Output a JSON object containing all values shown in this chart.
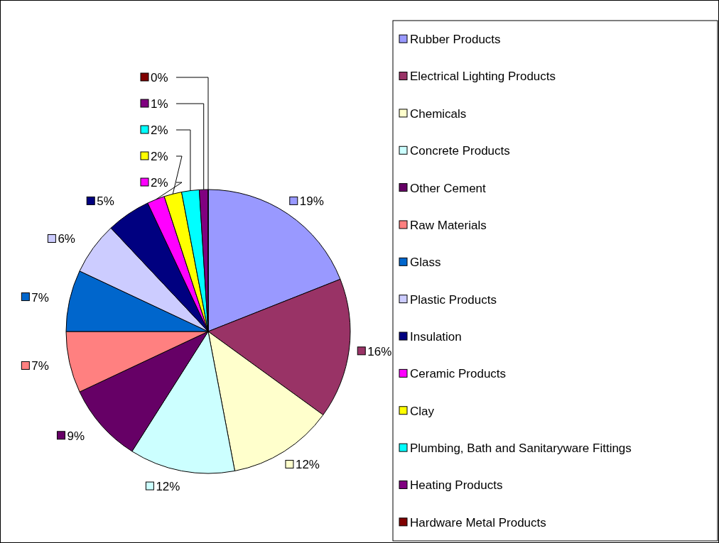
{
  "chart_data": {
    "type": "pie",
    "legend": "right",
    "categories": [
      "Rubber Products",
      "Electrical Lighting Products",
      "Chemicals",
      "Concrete Products",
      "Other Cement",
      "Raw Materials",
      "Glass",
      "Plastic Products",
      "Insulation",
      "Ceramic Products",
      "Clay",
      "Plumbing, Bath and Sanitaryware Fittings",
      "Heating Products",
      "Hardware Metal Products"
    ],
    "values": [
      19,
      16,
      12,
      12,
      9,
      7,
      7,
      6,
      5,
      2,
      2,
      2,
      1,
      0
    ],
    "colors": [
      "#9999ff",
      "#993366",
      "#ffffcc",
      "#ccffff",
      "#660066",
      "#ff8080",
      "#0066cc",
      "#ccccff",
      "#000080",
      "#ff00ff",
      "#ffff00",
      "#00ffff",
      "#800080",
      "#800000"
    ],
    "value_labels": [
      "19%",
      "16%",
      "12%",
      "12%",
      "9%",
      "7%",
      "7%",
      "6%",
      "5%",
      "2%",
      "2%",
      "2%",
      "1%",
      "0%"
    ]
  }
}
